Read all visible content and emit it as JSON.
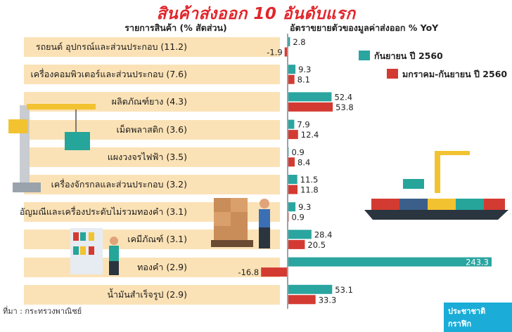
{
  "title": "สินค้าส่งออก 10 อันดับแรก",
  "left_header": "รายการสินค้า (% สัดส่วน)",
  "right_header": "อัตราขยายตัวของมูลค่าส่งออก % YoY",
  "source": "ที่มา : กระทรวงพาณิชย์",
  "brand": "ประชาชาติกราฟิก",
  "colors": {
    "sep": "#2aa5a0",
    "jansep": "#d33b32",
    "row_bg": "#fbe2b6"
  },
  "chart_data": {
    "type": "bar",
    "categories": [
      "รถยนต์ อุปกรณ์และส่วนประกอบ (11.2)",
      "เครื่องคอมพิวเตอร์และส่วนประกอบ (7.6)",
      "ผลิตภัณฑ์ยาง (4.3)",
      "เม็ดพลาสติก (3.6)",
      "แผงวงจรไฟฟ้า (3.5)",
      "เครื่องจักรกลและส่วนประกอบ (3.2)",
      "อัญมณีและเครื่องประดับไม่รวมทองคำ (3.1)",
      "เคมีภัณฑ์ (3.1)",
      "ทองคำ (2.9)",
      "น้ำมันสำเร็จรูป (2.9)"
    ],
    "series": [
      {
        "name": "กันยายน ปี 2560",
        "values": [
          2.8,
          9.3,
          52.4,
          7.9,
          0.9,
          11.5,
          9.3,
          28.4,
          243.3,
          53.1
        ]
      },
      {
        "name": "มกราคม-กันยายน ปี 2560",
        "values": [
          -1.9,
          8.1,
          53.8,
          12.4,
          8.4,
          11.8,
          0.9,
          20.5,
          -16.8,
          33.3
        ]
      }
    ],
    "labels": [
      [
        "2.8",
        "9.3",
        "52.4",
        "7.9",
        "0.9",
        "11.5",
        "9.3",
        "28.4",
        "243.3",
        "53.1"
      ],
      [
        "-1.9",
        "8.1",
        "53.8",
        "12.4",
        "8.4",
        "11.8",
        "0.9",
        "20.5",
        "-16.8",
        "33.3"
      ]
    ],
    "legend_position": "top-right"
  }
}
